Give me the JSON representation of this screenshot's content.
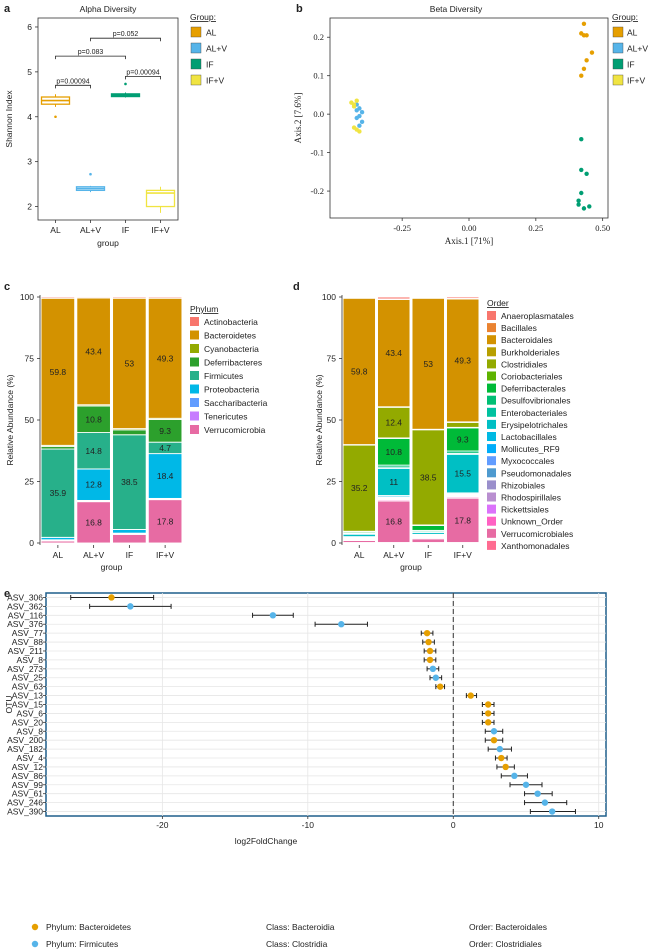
{
  "colors": {
    "AL": "#E69F00",
    "ALV": "#56B4E9",
    "IF": "#009E73",
    "IFV": "#F0E442",
    "frame": "#1f5f8b",
    "grid": "#e6e6e6"
  },
  "chart_data": [
    {
      "id": "a",
      "panel_label": "a",
      "type": "box",
      "title": "Alpha Diversity",
      "xlabel": "group",
      "ylabel": "Shannon Index",
      "categories": [
        "AL",
        "AL+V",
        "IF",
        "IF+V"
      ],
      "yticks": [
        "2",
        "3",
        "4",
        "5",
        "6"
      ],
      "ylim": [
        1.7,
        6.2
      ],
      "boxes": [
        {
          "group": "AL",
          "q1": 4.28,
          "median": 4.36,
          "q3": 4.44,
          "low": 4.22,
          "high": 4.5,
          "outliers": [
            4.0
          ]
        },
        {
          "group": "AL+V",
          "q1": 2.36,
          "median": 2.4,
          "q3": 2.44,
          "low": 2.32,
          "high": 2.46,
          "outliers": [
            2.72
          ]
        },
        {
          "group": "IF",
          "q1": 4.45,
          "median": 4.48,
          "q3": 4.51,
          "low": 4.43,
          "high": 4.54,
          "outliers": [
            4.73
          ]
        },
        {
          "group": "IF+V",
          "q1": 2.0,
          "median": 2.3,
          "q3": 2.36,
          "low": 1.86,
          "high": 2.44,
          "outliers": []
        }
      ],
      "comparisons": [
        {
          "from": "AL",
          "to": "AL+V",
          "label": "p=0.00094",
          "y": 4.7
        },
        {
          "from": "IF",
          "to": "IF+V",
          "label": "p=0.00094",
          "y": 4.9
        },
        {
          "from": "AL",
          "to": "IF",
          "label": "p=0.083",
          "y": 5.35
        },
        {
          "from": "AL+V",
          "to": "IF+V",
          "label": "p=0.052",
          "y": 5.75
        }
      ],
      "legend": {
        "title": "Group:",
        "items": [
          "AL",
          "AL+V",
          "IF",
          "IF+V"
        ]
      }
    },
    {
      "id": "b",
      "panel_label": "b",
      "type": "scatter",
      "title": "Beta Diversity",
      "xlabel": "Axis.1   [71%]",
      "ylabel": "Axis.2   [7.6%]",
      "xlim": [
        -0.52,
        0.52
      ],
      "ylim": [
        -0.27,
        0.25
      ],
      "xticks": [
        "-0.25",
        "0.00",
        "0.25",
        "0.50"
      ],
      "yticks": [
        "0.2",
        "0.1",
        "0.0",
        "-0.1",
        "-0.2"
      ],
      "series": [
        {
          "name": "AL",
          "points": [
            [
              0.43,
              0.235
            ],
            [
              0.42,
              0.21
            ],
            [
              0.44,
              0.205
            ],
            [
              0.43,
              0.205
            ],
            [
              0.46,
              0.16
            ],
            [
              0.44,
              0.14
            ],
            [
              0.42,
              0.1
            ],
            [
              0.43,
              0.118
            ]
          ]
        },
        {
          "name": "AL+V",
          "points": [
            [
              -0.42,
              0.025
            ],
            [
              -0.41,
              0.015
            ],
            [
              -0.4,
              0.005
            ],
            [
              -0.41,
              -0.005
            ],
            [
              -0.42,
              -0.01
            ],
            [
              -0.4,
              -0.02
            ],
            [
              -0.41,
              -0.03
            ],
            [
              -0.42,
              0.01
            ]
          ]
        },
        {
          "name": "IF",
          "points": [
            [
              0.42,
              -0.065
            ],
            [
              0.42,
              -0.145
            ],
            [
              0.44,
              -0.155
            ],
            [
              0.42,
              -0.205
            ],
            [
              0.41,
              -0.225
            ],
            [
              0.41,
              -0.235
            ],
            [
              0.43,
              -0.245
            ],
            [
              0.45,
              -0.24
            ]
          ]
        },
        {
          "name": "IF+V",
          "points": [
            [
              -0.44,
              0.03
            ],
            [
              -0.43,
              0.025
            ],
            [
              -0.42,
              0.035
            ],
            [
              -0.43,
              0.02
            ],
            [
              -0.42,
              -0.04
            ],
            [
              -0.41,
              -0.045
            ],
            [
              -0.43,
              -0.035
            ]
          ]
        }
      ],
      "legend": {
        "title": "Group:",
        "items": [
          "AL",
          "AL+V",
          "IF",
          "IF+V"
        ]
      }
    },
    {
      "id": "c",
      "panel_label": "c",
      "type": "bar",
      "stacked": true,
      "xlabel": "group",
      "ylabel": "Relative Abundance (%)",
      "categories": [
        "AL",
        "AL+V",
        "IF",
        "IF+V"
      ],
      "yticks": [
        "0",
        "25",
        "50",
        "75",
        "100"
      ],
      "ylim": [
        0,
        100
      ],
      "series": [
        {
          "name": "Actinobacteria",
          "color": "#F8766D",
          "values": [
            0.5,
            0.4,
            0.5,
            0.5
          ]
        },
        {
          "name": "Bacteroidetes",
          "color": "#D39200",
          "values": [
            59.8,
            43.4,
            53,
            49.3
          ],
          "labels": [
            "59.8",
            "43.4",
            "53",
            "49.3"
          ]
        },
        {
          "name": "Cyanobacteria",
          "color": "#93AA00",
          "values": [
            0.5,
            0.5,
            0.5,
            0.5
          ]
        },
        {
          "name": "Deferribacteres",
          "color": "#2CA02C",
          "values": [
            1.0,
            10.8,
            2.0,
            9.3
          ],
          "labels": [
            "",
            "10.8",
            "",
            "9.3"
          ]
        },
        {
          "name": "Firmicutes",
          "color": "#27B08A",
          "values": [
            35.9,
            14.8,
            38.5,
            4.7
          ],
          "labels": [
            "35.9",
            "14.8",
            "38.5",
            "4.7"
          ]
        },
        {
          "name": "Proteobacteria",
          "color": "#00B8E7",
          "values": [
            1.0,
            12.8,
            1.5,
            18.4
          ],
          "labels": [
            "",
            "12.8",
            "",
            "18.4"
          ]
        },
        {
          "name": "Saccharibacteria",
          "color": "#619CFF",
          "values": [
            0.3,
            0.3,
            0.3,
            0.3
          ]
        },
        {
          "name": "Tenericutes",
          "color": "#C77CFF",
          "values": [
            0.2,
            0.2,
            0.2,
            0.2
          ]
        },
        {
          "name": "Verrucomicrobia",
          "color": "#E76BA3",
          "values": [
            0.8,
            16.8,
            3.5,
            17.8
          ],
          "labels": [
            "",
            "16.8",
            "",
            "17.8"
          ]
        }
      ],
      "legend": {
        "title": "Phylum"
      }
    },
    {
      "id": "d",
      "panel_label": "d",
      "type": "bar",
      "stacked": true,
      "xlabel": "group",
      "ylabel": "Relative Abundance (%)",
      "categories": [
        "AL",
        "AL+V",
        "IF",
        "IF+V"
      ],
      "yticks": [
        "0",
        "25",
        "50",
        "75",
        "100"
      ],
      "ylim": [
        0,
        100
      ],
      "series": [
        {
          "name": "Anaeroplasmatales",
          "color": "#F8766D",
          "values": [
            0.3,
            0.8,
            0.3,
            0.6
          ]
        },
        {
          "name": "Bacillales",
          "color": "#EA8331",
          "values": [
            0.2,
            0.2,
            0.2,
            0.2
          ]
        },
        {
          "name": "Bacteroidales",
          "color": "#D39200",
          "values": [
            59.8,
            43.4,
            53,
            49.3
          ],
          "labels": [
            "59.8",
            "43.4",
            "53",
            "49.3"
          ]
        },
        {
          "name": "Burkholderiales",
          "color": "#B79F00",
          "values": [
            0.2,
            0.2,
            0.2,
            0.2
          ]
        },
        {
          "name": "Clostridiales",
          "color": "#93AA00",
          "values": [
            35.2,
            12.4,
            38.5,
            2.0
          ],
          "labels": [
            "35.2",
            "12.4",
            "38.5",
            ""
          ]
        },
        {
          "name": "Coriobacteriales",
          "color": "#5EB300",
          "values": [
            0.2,
            0.2,
            0.2,
            0.2
          ]
        },
        {
          "name": "Deferribacterales",
          "color": "#00BA38",
          "values": [
            0.5,
            10.8,
            2.0,
            9.3
          ],
          "labels": [
            "",
            "10.8",
            "",
            "9.3"
          ]
        },
        {
          "name": "Desulfovibrionales",
          "color": "#00BF74",
          "values": [
            0.3,
            0.8,
            0.5,
            0.9
          ]
        },
        {
          "name": "Enterobacteriales",
          "color": "#00C19F",
          "values": [
            0.2,
            0.5,
            0.3,
            0.4
          ]
        },
        {
          "name": "Erysipelotrichales",
          "color": "#00BFC4",
          "values": [
            1.0,
            11,
            0.8,
            15.5
          ],
          "labels": [
            "",
            "11",
            "",
            "15.5"
          ]
        },
        {
          "name": "Lactobacillales",
          "color": "#00B9E3",
          "values": [
            0.2,
            0.5,
            0.3,
            0.4
          ]
        },
        {
          "name": "Mollicutes_RF9",
          "color": "#00ADFA",
          "values": [
            0.2,
            0.3,
            0.2,
            0.3
          ]
        },
        {
          "name": "Myxococcales",
          "color": "#619CFF",
          "values": [
            0.2,
            0.2,
            0.2,
            0.2
          ]
        },
        {
          "name": "Pseudomonadales",
          "color": "#4E9ACF",
          "values": [
            0.2,
            0.2,
            0.2,
            0.2
          ]
        },
        {
          "name": "Rhizobiales",
          "color": "#9A8FCC",
          "values": [
            0.2,
            0.2,
            0.2,
            0.2
          ]
        },
        {
          "name": "Rhodospirillales",
          "color": "#B98FD0",
          "values": [
            0.2,
            0.2,
            0.2,
            0.2
          ]
        },
        {
          "name": "Rickettsiales",
          "color": "#DB72FB",
          "values": [
            0.1,
            0.1,
            0.1,
            0.1
          ]
        },
        {
          "name": "Unknown_Order",
          "color": "#FF61C3",
          "values": [
            0.3,
            0.5,
            0.4,
            0.5
          ]
        },
        {
          "name": "Verrucomicrobiales",
          "color": "#E76BA3",
          "values": [
            0.8,
            16.8,
            1.5,
            17.8
          ],
          "labels": [
            "",
            "16.8",
            "",
            "17.8"
          ]
        },
        {
          "name": "Xanthomonadales",
          "color": "#FF6C91",
          "values": [
            0.2,
            0.2,
            0.2,
            0.2
          ]
        }
      ],
      "legend": {
        "title": "Order"
      }
    },
    {
      "id": "e",
      "panel_label": "e",
      "type": "scatter",
      "xlabel": "log2FoldChange",
      "ylabel": "OTU",
      "xlim": [
        -28,
        10.5
      ],
      "xticks": [
        "-20",
        "-10",
        "0",
        "10"
      ],
      "rows": [
        {
          "otu": "ASV_306",
          "value": -23.5,
          "low": -26.3,
          "high": -20.6,
          "phylum": "Bacteroidetes"
        },
        {
          "otu": "ASV_362",
          "value": -22.2,
          "low": -25.0,
          "high": -19.4,
          "phylum": "Firmicutes"
        },
        {
          "otu": "ASV_116",
          "value": -12.4,
          "low": -13.8,
          "high": -11.0,
          "phylum": "Firmicutes"
        },
        {
          "otu": "ASV_376",
          "value": -7.7,
          "low": -9.5,
          "high": -5.9,
          "phylum": "Firmicutes"
        },
        {
          "otu": "ASV_77",
          "value": -1.8,
          "low": -2.2,
          "high": -1.4,
          "phylum": "Bacteroidetes"
        },
        {
          "otu": "ASV_88",
          "value": -1.7,
          "low": -2.1,
          "high": -1.3,
          "phylum": "Bacteroidetes"
        },
        {
          "otu": "ASV_211",
          "value": -1.6,
          "low": -2.0,
          "high": -1.2,
          "phylum": "Bacteroidetes"
        },
        {
          "otu": "ASV_8",
          "value": -1.6,
          "low": -2.0,
          "high": -1.2,
          "phylum": "Bacteroidetes"
        },
        {
          "otu": "ASV_273",
          "value": -1.4,
          "low": -1.8,
          "high": -1.0,
          "phylum": "Firmicutes"
        },
        {
          "otu": "ASV_25",
          "value": -1.2,
          "low": -1.6,
          "high": -0.8,
          "phylum": "Firmicutes"
        },
        {
          "otu": "ASV_63",
          "value": -0.9,
          "low": -1.2,
          "high": -0.6,
          "phylum": "Bacteroidetes"
        },
        {
          "otu": "ASV_13",
          "value": 1.2,
          "low": 0.9,
          "high": 1.6,
          "phylum": "Bacteroidetes"
        },
        {
          "otu": "ASV_15",
          "value": 2.4,
          "low": 2.0,
          "high": 2.8,
          "phylum": "Bacteroidetes"
        },
        {
          "otu": "ASV_6",
          "value": 2.4,
          "low": 2.0,
          "high": 2.8,
          "phylum": "Bacteroidetes"
        },
        {
          "otu": "ASV_20",
          "value": 2.4,
          "low": 2.0,
          "high": 2.8,
          "phylum": "Bacteroidetes"
        },
        {
          "otu": "ASV_8",
          "value": 2.8,
          "low": 2.2,
          "high": 3.4,
          "phylum": "Firmicutes"
        },
        {
          "otu": "ASV_200",
          "value": 2.8,
          "low": 2.2,
          "high": 3.4,
          "phylum": "Bacteroidetes"
        },
        {
          "otu": "ASV_182",
          "value": 3.2,
          "low": 2.4,
          "high": 4.0,
          "phylum": "Firmicutes"
        },
        {
          "otu": "ASV_4",
          "value": 3.3,
          "low": 2.9,
          "high": 3.7,
          "phylum": "Bacteroidetes"
        },
        {
          "otu": "ASV_12",
          "value": 3.6,
          "low": 3.0,
          "high": 4.2,
          "phylum": "Bacteroidetes"
        },
        {
          "otu": "ASV_86",
          "value": 4.2,
          "low": 3.3,
          "high": 5.1,
          "phylum": "Firmicutes"
        },
        {
          "otu": "ASV_99",
          "value": 5.0,
          "low": 3.9,
          "high": 6.1,
          "phylum": "Firmicutes"
        },
        {
          "otu": "ASV_61",
          "value": 5.8,
          "low": 4.9,
          "high": 6.8,
          "phylum": "Firmicutes"
        },
        {
          "otu": "ASV_246",
          "value": 6.3,
          "low": 4.9,
          "high": 7.8,
          "phylum": "Firmicutes"
        },
        {
          "otu": "ASV_390",
          "value": 6.8,
          "low": 5.3,
          "high": 8.4,
          "phylum": "Firmicutes"
        }
      ],
      "legend_rows": [
        {
          "phylum": "Bacteroidetes",
          "text": "Phylum: Bacteroidetes",
          "class": "Class: Bacteroidia",
          "order": "Order: Bacteroidales"
        },
        {
          "phylum": "Firmicutes",
          "text": "Phylum: Firmicutes",
          "class": "Class: Clostridia",
          "order": "Order: Clostridiales"
        }
      ]
    }
  ]
}
